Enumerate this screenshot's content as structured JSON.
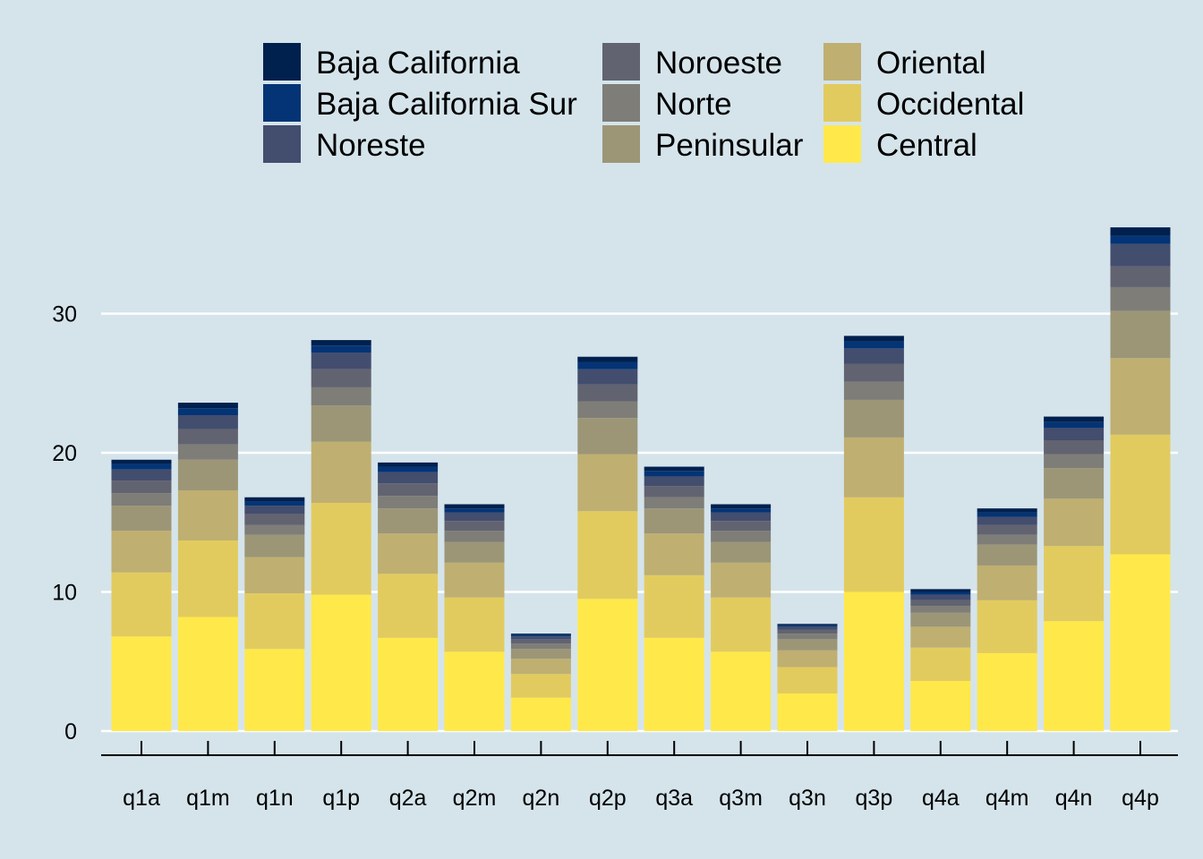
{
  "chart_data": {
    "type": "bar",
    "stacked": true,
    "title": "",
    "xlabel": "",
    "ylabel": "",
    "ylim": [
      0,
      36
    ],
    "yticks": [
      0,
      10,
      20,
      30
    ],
    "grid": true,
    "legend_position": "top",
    "categories": [
      "q1a",
      "q1m",
      "q1n",
      "q1p",
      "q2a",
      "q2m",
      "q2n",
      "q2p",
      "q3a",
      "q3m",
      "q3n",
      "q3p",
      "q4a",
      "q4m",
      "q4n",
      "q4p"
    ],
    "series": [
      {
        "name": "Central",
        "color": "#ffe94a",
        "values": [
          6.8,
          8.2,
          5.9,
          9.8,
          6.7,
          5.7,
          2.4,
          9.5,
          6.7,
          5.7,
          2.7,
          10.0,
          3.6,
          5.6,
          7.9,
          12.7
        ]
      },
      {
        "name": "Occidental",
        "color": "#e2cb5e",
        "values": [
          4.6,
          5.5,
          4.0,
          6.6,
          4.6,
          3.9,
          1.7,
          6.3,
          4.5,
          3.9,
          1.9,
          6.8,
          2.4,
          3.8,
          5.4,
          8.6
        ]
      },
      {
        "name": "Oriental",
        "color": "#bfaf71",
        "values": [
          3.0,
          3.6,
          2.6,
          4.4,
          2.9,
          2.5,
          1.1,
          4.1,
          3.0,
          2.5,
          1.2,
          4.3,
          1.5,
          2.5,
          3.4,
          5.5
        ]
      },
      {
        "name": "Peninsular",
        "color": "#9c9677",
        "values": [
          1.8,
          2.2,
          1.6,
          2.6,
          1.8,
          1.5,
          0.7,
          2.6,
          1.8,
          1.5,
          0.8,
          2.7,
          1.0,
          1.5,
          2.2,
          3.4
        ]
      },
      {
        "name": "Norte",
        "color": "#7e7d78",
        "values": [
          0.9,
          1.1,
          0.7,
          1.3,
          0.9,
          0.8,
          0.4,
          1.2,
          0.8,
          0.8,
          0.4,
          1.3,
          0.5,
          0.7,
          1.0,
          1.7
        ]
      },
      {
        "name": "Noroeste",
        "color": "#626370",
        "values": [
          0.9,
          1.1,
          0.8,
          1.3,
          0.9,
          0.7,
          0.3,
          1.2,
          0.8,
          0.7,
          0.3,
          1.3,
          0.4,
          0.7,
          1.0,
          1.5
        ]
      },
      {
        "name": "Noreste",
        "color": "#434d6e",
        "values": [
          0.8,
          1.0,
          0.6,
          1.2,
          0.8,
          0.6,
          0.2,
          1.1,
          0.7,
          0.6,
          0.2,
          1.1,
          0.4,
          0.6,
          0.9,
          1.6
        ]
      },
      {
        "name": "Baja California Sur",
        "color": "#043475",
        "values": [
          0.4,
          0.5,
          0.3,
          0.5,
          0.4,
          0.3,
          0.1,
          0.5,
          0.4,
          0.3,
          0.1,
          0.5,
          0.2,
          0.3,
          0.4,
          0.6
        ]
      },
      {
        "name": "Baja California",
        "color": "#00204e",
        "values": [
          0.3,
          0.4,
          0.3,
          0.4,
          0.3,
          0.3,
          0.1,
          0.4,
          0.3,
          0.3,
          0.1,
          0.4,
          0.2,
          0.3,
          0.4,
          0.6
        ]
      }
    ]
  }
}
